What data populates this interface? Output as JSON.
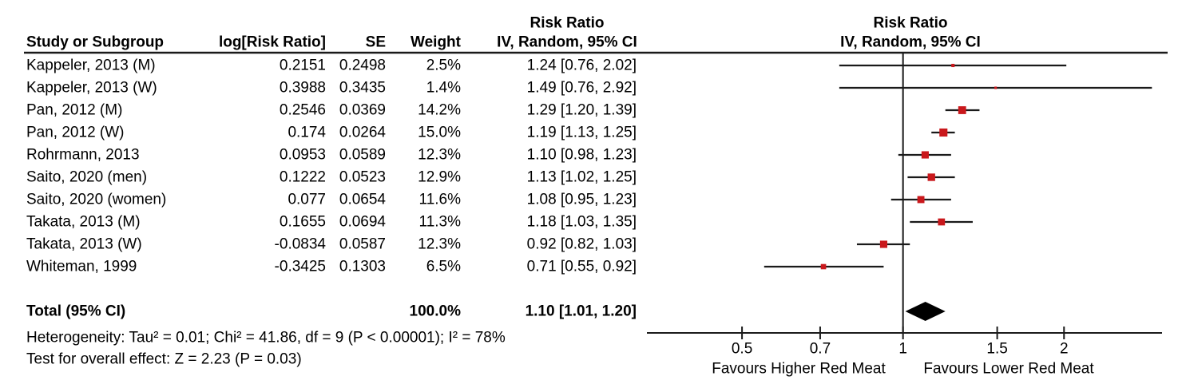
{
  "table": {
    "header": {
      "study": "Study or Subgroup",
      "log_rr": "log[Risk Ratio]",
      "se": "SE",
      "weight": "Weight",
      "effect_line1": "Risk Ratio",
      "effect_line2": "IV, Random, 95% CI"
    },
    "plot_header": {
      "line1": "Risk Ratio",
      "line2": "IV, Random, 95% CI"
    },
    "rows": [
      {
        "study": "Kappeler, 2013 (M)",
        "log_rr": "0.2151",
        "se": "0.2498",
        "weight": "2.5%",
        "effect": "1.24 [0.76, 2.02]"
      },
      {
        "study": "Kappeler, 2013 (W)",
        "log_rr": "0.3988",
        "se": "0.3435",
        "weight": "1.4%",
        "effect": "1.49 [0.76, 2.92]"
      },
      {
        "study": "Pan, 2012 (M)",
        "log_rr": "0.2546",
        "se": "0.0369",
        "weight": "14.2%",
        "effect": "1.29 [1.20, 1.39]"
      },
      {
        "study": "Pan, 2012 (W)",
        "log_rr": "0.174",
        "se": "0.0264",
        "weight": "15.0%",
        "effect": "1.19 [1.13, 1.25]"
      },
      {
        "study": "Rohrmann, 2013",
        "log_rr": "0.0953",
        "se": "0.0589",
        "weight": "12.3%",
        "effect": "1.10 [0.98, 1.23]"
      },
      {
        "study": "Saito, 2020 (men)",
        "log_rr": "0.1222",
        "se": "0.0523",
        "weight": "12.9%",
        "effect": "1.13 [1.02, 1.25]"
      },
      {
        "study": "Saito, 2020 (women)",
        "log_rr": "0.077",
        "se": "0.0654",
        "weight": "11.6%",
        "effect": "1.08 [0.95, 1.23]"
      },
      {
        "study": "Takata, 2013 (M)",
        "log_rr": "0.1655",
        "se": "0.0694",
        "weight": "11.3%",
        "effect": "1.18 [1.03, 1.35]"
      },
      {
        "study": "Takata, 2013 (W)",
        "log_rr": "-0.0834",
        "se": "0.0587",
        "weight": "12.3%",
        "effect": "0.92 [0.82, 1.03]"
      },
      {
        "study": "Whiteman, 1999",
        "log_rr": "-0.3425",
        "se": "0.1303",
        "weight": "6.5%",
        "effect": "0.71 [0.55, 0.92]"
      }
    ],
    "total": {
      "label": "Total (95% CI)",
      "weight": "100.0%",
      "effect": "1.10 [1.01, 1.20]"
    },
    "footer": {
      "heterogeneity": "Heterogeneity: Tau² = 0.01; Chi² = 41.86, df = 9 (P < 0.00001); I² = 78%",
      "overall_effect": "Test for overall effect: Z = 2.23 (P = 0.03)"
    }
  },
  "chart_data": {
    "type": "forest",
    "scale": "log",
    "effect_measure": "Risk Ratio",
    "model": "IV, Random, 95% CI",
    "axis": {
      "min": 0.332,
      "max": 3.05,
      "ticks": [
        0.5,
        0.7,
        1,
        1.5,
        2
      ],
      "tick_labels": [
        "0.5",
        "0.7",
        "1",
        "1.5",
        "2"
      ]
    },
    "x_labels": {
      "left": "Favours Higher Red Meat",
      "right": "Favours Lower Red Meat"
    },
    "studies": [
      {
        "name": "Kappeler, 2013 (M)",
        "rr": 1.24,
        "lo": 0.76,
        "hi": 2.02,
        "weight_pct": 2.5
      },
      {
        "name": "Kappeler, 2013 (W)",
        "rr": 1.49,
        "lo": 0.76,
        "hi": 2.92,
        "weight_pct": 1.4
      },
      {
        "name": "Pan, 2012 (M)",
        "rr": 1.29,
        "lo": 1.2,
        "hi": 1.39,
        "weight_pct": 14.2
      },
      {
        "name": "Pan, 2012 (W)",
        "rr": 1.19,
        "lo": 1.13,
        "hi": 1.25,
        "weight_pct": 15.0
      },
      {
        "name": "Rohrmann, 2013",
        "rr": 1.1,
        "lo": 0.98,
        "hi": 1.23,
        "weight_pct": 12.3
      },
      {
        "name": "Saito, 2020 (men)",
        "rr": 1.13,
        "lo": 1.02,
        "hi": 1.25,
        "weight_pct": 12.9
      },
      {
        "name": "Saito, 2020 (women)",
        "rr": 1.08,
        "lo": 0.95,
        "hi": 1.23,
        "weight_pct": 11.6
      },
      {
        "name": "Takata, 2013 (M)",
        "rr": 1.18,
        "lo": 1.03,
        "hi": 1.35,
        "weight_pct": 11.3
      },
      {
        "name": "Takata, 2013 (W)",
        "rr": 0.92,
        "lo": 0.82,
        "hi": 1.03,
        "weight_pct": 12.3
      },
      {
        "name": "Whiteman, 1999",
        "rr": 0.71,
        "lo": 0.55,
        "hi": 0.92,
        "weight_pct": 6.5
      }
    ],
    "total": {
      "rr": 1.1,
      "lo": 1.01,
      "hi": 1.2
    },
    "colors": {
      "square": "#C9181C",
      "diamond": "#000000",
      "line": "#1a1a1a",
      "text": "#000000"
    }
  }
}
